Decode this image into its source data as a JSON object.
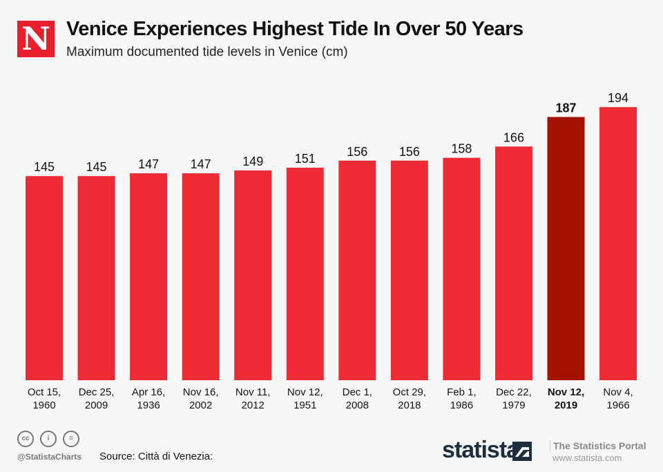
{
  "header": {
    "logo_letter": "N",
    "title": "Venice Experiences Highest Tide In Over 50 Years",
    "subtitle": "Maximum documented tide levels in Venice (cm)"
  },
  "chart_data": {
    "type": "bar",
    "title": "Venice Experiences Highest Tide In Over 50 Years",
    "subtitle": "Maximum documented tide levels in Venice (cm)",
    "xlabel": "",
    "ylabel": "",
    "ylim": [
      0,
      200
    ],
    "grid": false,
    "categories": [
      [
        "Oct 15,",
        "1960"
      ],
      [
        "Dec 25,",
        "2009"
      ],
      [
        "Apr 16,",
        "1936"
      ],
      [
        "Nov 16,",
        "2002"
      ],
      [
        "Nov 11,",
        "2012"
      ],
      [
        "Nov 12,",
        "1951"
      ],
      [
        "Dec 1,",
        "2008"
      ],
      [
        "Oct 29,",
        "2018"
      ],
      [
        "Feb 1,",
        "1986"
      ],
      [
        "Dec 22,",
        "1979"
      ],
      [
        "Nov 12,",
        "2019"
      ],
      [
        "Nov 4,",
        "1966"
      ]
    ],
    "values": [
      145,
      145,
      147,
      147,
      149,
      151,
      156,
      156,
      158,
      166,
      187,
      194
    ],
    "highlight_index": 10,
    "colors": {
      "bar": "#ee2a35",
      "highlight": "#a51300"
    }
  },
  "footer": {
    "handle": "@StatistaCharts",
    "source": "Source: Città di Venezia:",
    "brand": "statista",
    "portal": "The Statistics Portal",
    "url": "www.statista.com",
    "cc_icons": [
      "cc",
      "by",
      "nd"
    ]
  }
}
